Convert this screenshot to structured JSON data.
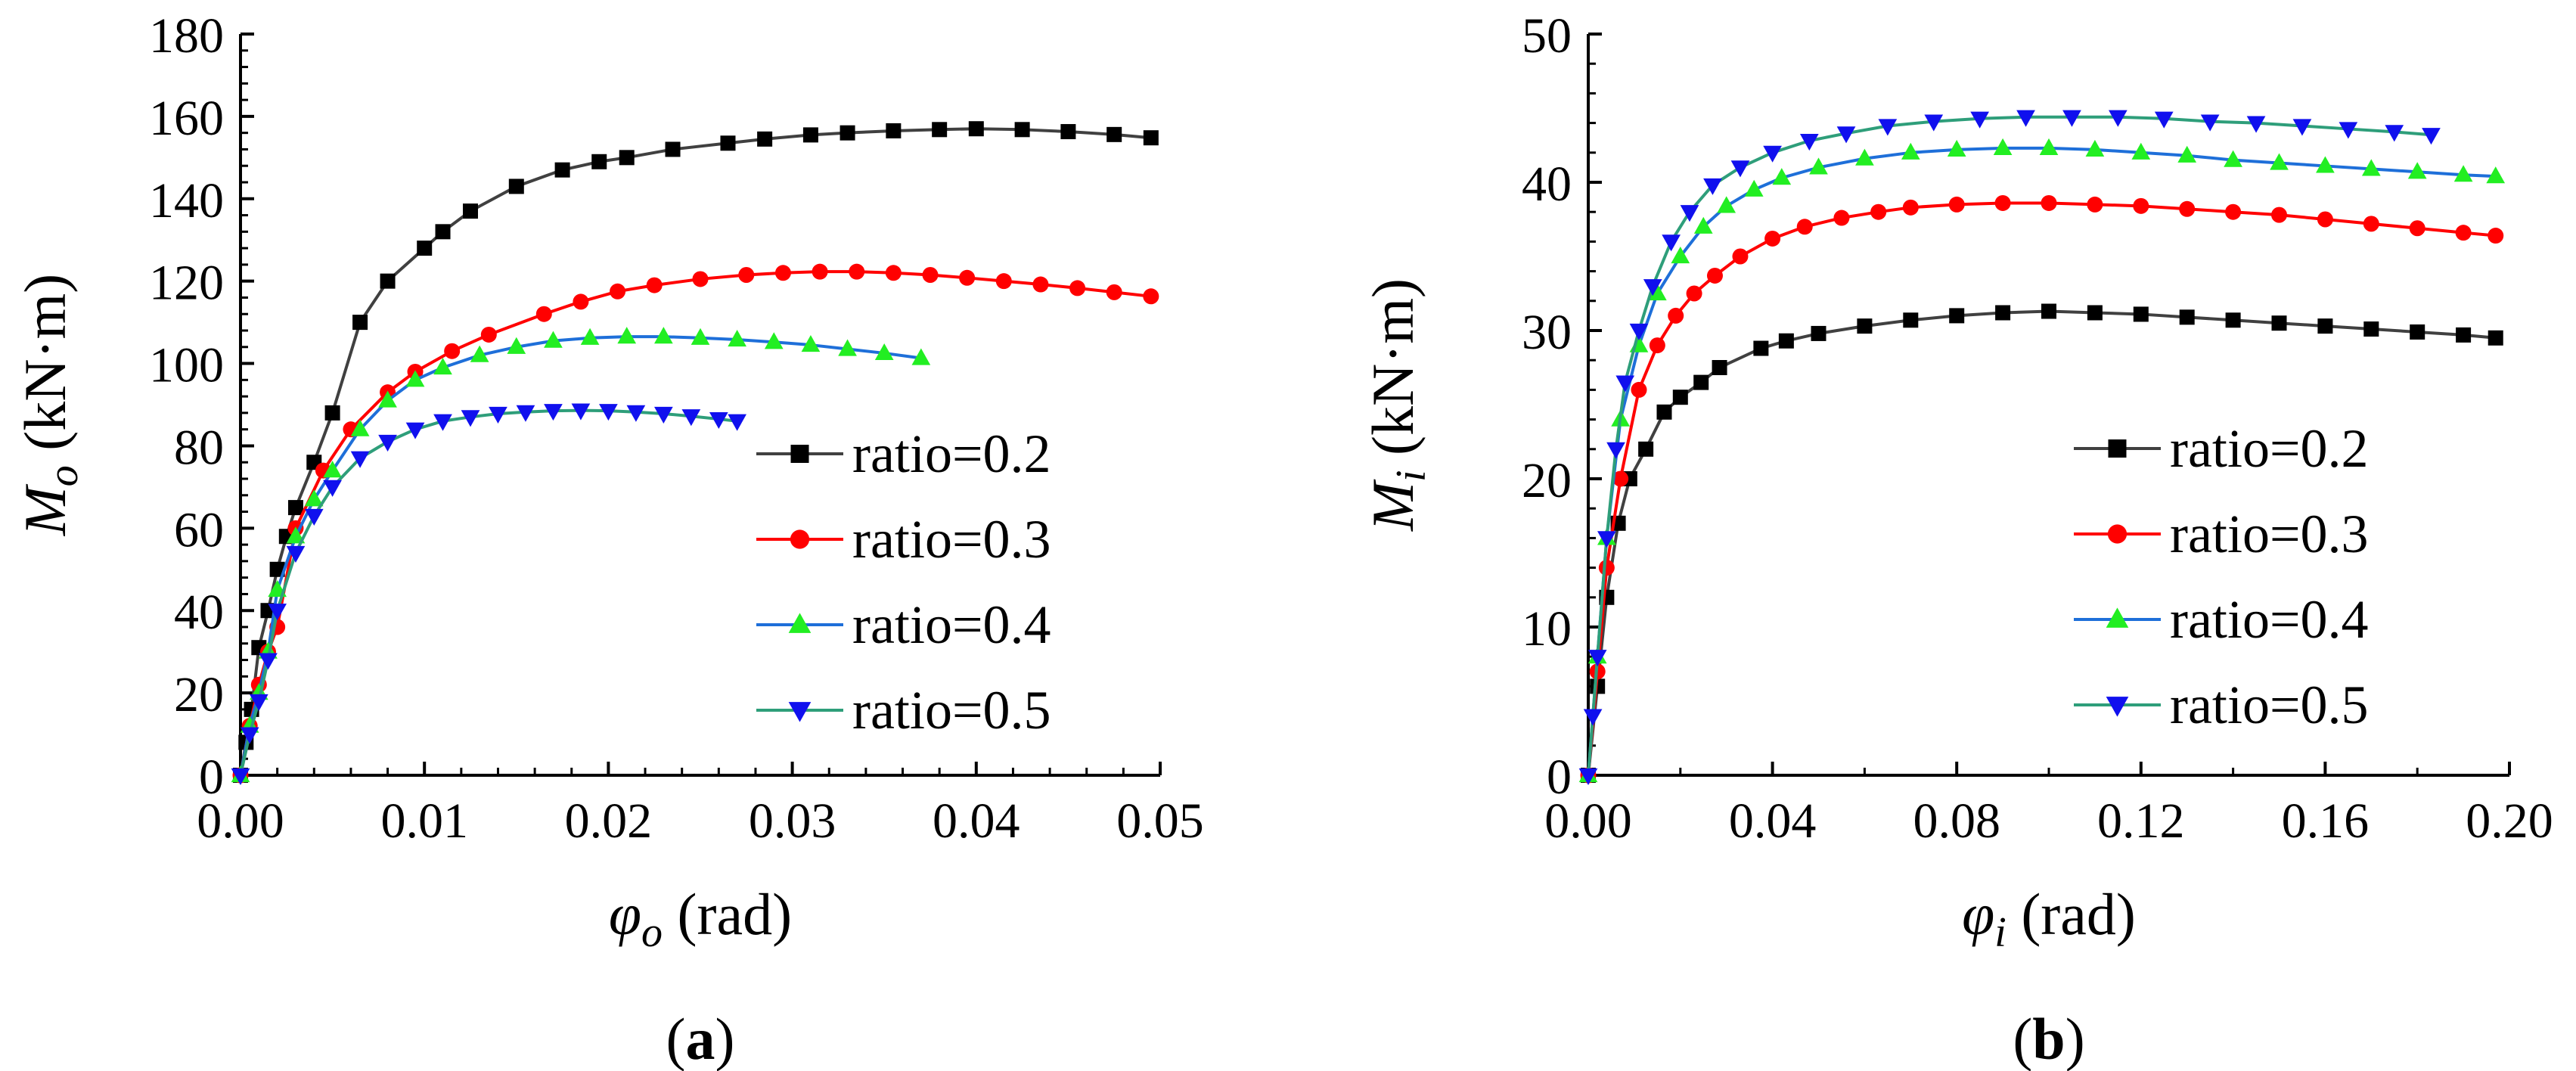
{
  "chart_data": [
    {
      "panel": "(a)",
      "panel_letter": "a",
      "type": "line",
      "ylabel": {
        "symbol": "M",
        "sub": "o",
        "unit": " (kN·m)"
      },
      "xlabel": {
        "symbol": "φ",
        "sub": "o",
        "unit": " (rad)"
      },
      "xlim": [
        0,
        0.05
      ],
      "ylim": [
        0,
        180
      ],
      "xticks": [
        "0.00",
        "0.01",
        "0.02",
        "0.03",
        "0.04",
        "0.05"
      ],
      "xtick_values": [
        0,
        0.01,
        0.02,
        0.03,
        0.04,
        0.05
      ],
      "yticks": [
        "0",
        "20",
        "40",
        "60",
        "80",
        "100",
        "120",
        "140",
        "160",
        "180"
      ],
      "ytick_values": [
        0,
        20,
        40,
        60,
        80,
        100,
        120,
        140,
        160,
        180
      ],
      "legend_position": "center-right",
      "series": [
        {
          "name": "ratio=0.2",
          "line_color": "#404040",
          "marker_color": "#000000",
          "marker": "square",
          "x": [
            0,
            0.0003,
            0.0006,
            0.001,
            0.0015,
            0.002,
            0.0025,
            0.003,
            0.004,
            0.005,
            0.0065,
            0.008,
            0.01,
            0.011,
            0.0125,
            0.015,
            0.0175,
            0.0195,
            0.021,
            0.0235,
            0.0265,
            0.0285,
            0.031,
            0.033,
            0.0355,
            0.038,
            0.04,
            0.0425,
            0.045,
            0.0475,
            0.0495
          ],
          "y": [
            0,
            8,
            16,
            31,
            40,
            50,
            58,
            65,
            76,
            88,
            110,
            120,
            128,
            132,
            137,
            143,
            147,
            149,
            150,
            152,
            153.5,
            154.5,
            155.5,
            156,
            156.5,
            156.8,
            157,
            156.8,
            156.3,
            155.6,
            154.8
          ]
        },
        {
          "name": "ratio=0.3",
          "line_color": "#ff0000",
          "marker_color": "#ff0000",
          "marker": "circle",
          "x": [
            0,
            0.0005,
            0.001,
            0.0015,
            0.002,
            0.003,
            0.0045,
            0.006,
            0.008,
            0.0095,
            0.0115,
            0.0135,
            0.0165,
            0.0185,
            0.0205,
            0.0225,
            0.025,
            0.0275,
            0.0295,
            0.0315,
            0.0335,
            0.0355,
            0.0375,
            0.0395,
            0.0415,
            0.0435,
            0.0455,
            0.0475,
            0.0495
          ],
          "y": [
            0,
            12,
            22,
            30,
            36,
            60,
            74,
            84,
            93,
            98,
            103,
            107,
            112,
            115,
            117.5,
            119,
            120.5,
            121.5,
            122,
            122.3,
            122.3,
            122,
            121.5,
            120.8,
            120,
            119.2,
            118.3,
            117.3,
            116.3
          ]
        },
        {
          "name": "ratio=0.4",
          "line_color": "#1e6fd9",
          "marker_color": "#22ee22",
          "marker": "triangle-up",
          "x": [
            0,
            0.0005,
            0.001,
            0.0015,
            0.002,
            0.003,
            0.004,
            0.005,
            0.0065,
            0.008,
            0.0095,
            0.011,
            0.013,
            0.015,
            0.017,
            0.019,
            0.021,
            0.023,
            0.025,
            0.027,
            0.029,
            0.031,
            0.033,
            0.035,
            0.037
          ],
          "y": [
            0,
            12,
            20,
            30,
            45,
            58,
            67,
            74,
            84,
            91,
            96,
            99,
            102,
            104,
            105.5,
            106.2,
            106.5,
            106.5,
            106.2,
            105.8,
            105.2,
            104.5,
            103.5,
            102.5,
            101.3
          ]
        },
        {
          "name": "ratio=0.5",
          "line_color": "#2e9e7a",
          "marker_color": "#1010ee",
          "marker": "triangle-down",
          "x": [
            0,
            0.0005,
            0.001,
            0.0015,
            0.002,
            0.003,
            0.004,
            0.005,
            0.0065,
            0.008,
            0.0095,
            0.011,
            0.0125,
            0.014,
            0.0155,
            0.017,
            0.0185,
            0.02,
            0.0215,
            0.023,
            0.0245,
            0.026,
            0.027
          ],
          "y": [
            0,
            10,
            18,
            28,
            40,
            54,
            63,
            70,
            77,
            81,
            84,
            86,
            87,
            87.8,
            88.2,
            88.5,
            88.6,
            88.5,
            88.2,
            87.8,
            87.2,
            86.5,
            86
          ]
        }
      ]
    },
    {
      "panel": "(b)",
      "panel_letter": "b",
      "type": "line",
      "ylabel": {
        "symbol": "M",
        "sub": "i",
        "unit": " (kN·m)"
      },
      "xlabel": {
        "symbol": "φ",
        "sub": "i",
        "unit": " (rad)"
      },
      "xlim": [
        0,
        0.2
      ],
      "ylim": [
        0,
        50
      ],
      "xticks": [
        "0.00",
        "0.04",
        "0.08",
        "0.12",
        "0.16",
        "0.20"
      ],
      "xtick_values": [
        0,
        0.04,
        0.08,
        0.12,
        0.16,
        0.2
      ],
      "yticks": [
        "0",
        "10",
        "20",
        "30",
        "40",
        "50"
      ],
      "ytick_values": [
        0,
        10,
        20,
        30,
        40,
        50
      ],
      "legend_position": "center-right",
      "series": [
        {
          "name": "ratio=0.2",
          "line_color": "#404040",
          "marker_color": "#000000",
          "marker": "square",
          "x": [
            0,
            0.002,
            0.004,
            0.0065,
            0.009,
            0.0125,
            0.0165,
            0.02,
            0.0245,
            0.0285,
            0.0375,
            0.043,
            0.05,
            0.06,
            0.07,
            0.08,
            0.09,
            0.1,
            0.11,
            0.12,
            0.13,
            0.14,
            0.15,
            0.16,
            0.17,
            0.18,
            0.19,
            0.197
          ],
          "y": [
            0,
            6,
            12,
            17,
            20,
            22,
            24.5,
            25.5,
            26.5,
            27.5,
            28.8,
            29.3,
            29.8,
            30.3,
            30.7,
            31,
            31.2,
            31.3,
            31.2,
            31.1,
            30.9,
            30.7,
            30.5,
            30.3,
            30.1,
            29.9,
            29.7,
            29.5
          ]
        },
        {
          "name": "ratio=0.3",
          "line_color": "#ff0000",
          "marker_color": "#ff0000",
          "marker": "circle",
          "x": [
            0,
            0.002,
            0.004,
            0.007,
            0.011,
            0.015,
            0.019,
            0.023,
            0.0275,
            0.033,
            0.04,
            0.047,
            0.055,
            0.063,
            0.07,
            0.08,
            0.09,
            0.1,
            0.11,
            0.12,
            0.13,
            0.14,
            0.15,
            0.16,
            0.17,
            0.18,
            0.19,
            0.197
          ],
          "y": [
            0,
            7,
            14,
            20,
            26,
            29,
            31,
            32.5,
            33.7,
            35,
            36.2,
            37,
            37.6,
            38,
            38.3,
            38.5,
            38.6,
            38.6,
            38.5,
            38.4,
            38.2,
            38,
            37.8,
            37.5,
            37.2,
            36.9,
            36.6,
            36.4
          ]
        },
        {
          "name": "ratio=0.4",
          "line_color": "#1e6fd9",
          "marker_color": "#22ee22",
          "marker": "triangle-up",
          "x": [
            0,
            0.002,
            0.004,
            0.007,
            0.011,
            0.015,
            0.02,
            0.025,
            0.03,
            0.036,
            0.042,
            0.05,
            0.06,
            0.07,
            0.08,
            0.09,
            0.1,
            0.11,
            0.12,
            0.13,
            0.14,
            0.15,
            0.16,
            0.17,
            0.18,
            0.19,
            0.197
          ],
          "y": [
            0,
            8,
            16,
            24,
            29,
            32.5,
            35,
            37,
            38.4,
            39.5,
            40.3,
            41,
            41.6,
            42,
            42.2,
            42.3,
            42.3,
            42.2,
            42,
            41.8,
            41.5,
            41.3,
            41.1,
            40.9,
            40.7,
            40.5,
            40.4
          ]
        },
        {
          "name": "ratio=0.5",
          "line_color": "#2e9e7a",
          "marker_color": "#1010ee",
          "marker": "triangle-down",
          "x": [
            0,
            0.001,
            0.002,
            0.004,
            0.006,
            0.008,
            0.011,
            0.014,
            0.018,
            0.022,
            0.027,
            0.033,
            0.04,
            0.048,
            0.056,
            0.065,
            0.075,
            0.085,
            0.095,
            0.105,
            0.115,
            0.125,
            0.135,
            0.145,
            0.155,
            0.165,
            0.175,
            0.183
          ],
          "y": [
            0,
            4,
            8,
            16,
            22,
            26.5,
            30,
            33,
            36,
            38,
            39.8,
            41,
            42,
            42.8,
            43.3,
            43.8,
            44.1,
            44.3,
            44.4,
            44.4,
            44.4,
            44.3,
            44.1,
            44,
            43.8,
            43.6,
            43.4,
            43.2
          ]
        }
      ]
    }
  ]
}
